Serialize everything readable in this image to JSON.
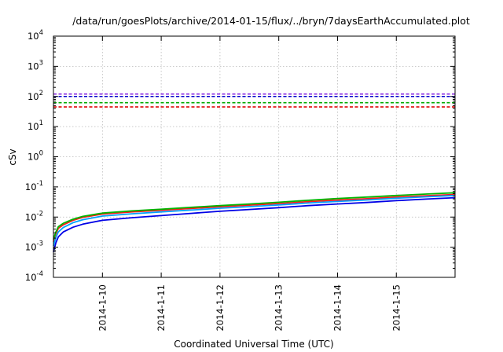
{
  "chart_data": {
    "type": "line",
    "title": "/data/run/goesPlots/archive/2014-01-15/flux/../bryn/7daysEarthAccumulated.plot",
    "xlabel": "Coordinated Universal Time (UTC)",
    "ylabel": "cSv",
    "yscale": "log",
    "ylim": [
      0.0001,
      10000
    ],
    "xlim": [
      "2014-01-09 04:00",
      "2014-01-15 23:59"
    ],
    "grid": true,
    "legend": "none",
    "x_ticks": [
      {
        "label": "2014-1-10",
        "value": "2014-01-10"
      },
      {
        "label": "2014-1-11",
        "value": "2014-01-11"
      },
      {
        "label": "2014-1-12",
        "value": "2014-01-12"
      },
      {
        "label": "2014-1-13",
        "value": "2014-01-13"
      },
      {
        "label": "2014-1-14",
        "value": "2014-01-14"
      },
      {
        "label": "2014-1-15",
        "value": "2014-01-15"
      }
    ],
    "y_ticks": [
      {
        "base": "10",
        "exp": "-4",
        "value": 0.0001
      },
      {
        "base": "10",
        "exp": "-3",
        "value": 0.001
      },
      {
        "base": "10",
        "exp": "-2",
        "value": 0.01
      },
      {
        "base": "10",
        "exp": "-1",
        "value": 0.1
      },
      {
        "base": "10",
        "exp": "0",
        "value": 1
      },
      {
        "base": "10",
        "exp": "1",
        "value": 10
      },
      {
        "base": "10",
        "exp": "2",
        "value": 100
      },
      {
        "base": "10",
        "exp": "3",
        "value": 1000
      },
      {
        "base": "10",
        "exp": "4",
        "value": 10000
      }
    ],
    "thresholds": [
      {
        "color": "#8a2be2",
        "value": 120
      },
      {
        "color": "#0000cc",
        "value": 100
      },
      {
        "color": "#00aa00",
        "value": 62
      },
      {
        "color": "#dd0000",
        "value": 45
      }
    ],
    "series": [
      {
        "color": "#ff1a1a",
        "x": [
          "2014-01-09 04:00",
          "2014-01-09 05:00",
          "2014-01-09 06:00",
          "2014-01-09 08:00",
          "2014-01-09 12:00",
          "2014-01-09 16:00",
          "2014-01-10 00:00",
          "2014-01-10 12:00",
          "2014-01-11 00:00",
          "2014-01-11 12:00",
          "2014-01-12 00:00",
          "2014-01-12 12:00",
          "2014-01-13 00:00",
          "2014-01-13 12:00",
          "2014-01-14 00:00",
          "2014-01-14 12:00",
          "2014-01-15 00:00",
          "2014-01-15 12:00",
          "2014-01-15 23:59"
        ],
        "values": [
          0.0015,
          0.0028,
          0.0042,
          0.0055,
          0.0078,
          0.0098,
          0.0125,
          0.0148,
          0.0168,
          0.0192,
          0.022,
          0.0248,
          0.028,
          0.0325,
          0.0365,
          0.0405,
          0.046,
          0.051,
          0.056
        ]
      },
      {
        "color": "#00b400",
        "x": [
          "2014-01-09 04:00",
          "2014-01-09 05:00",
          "2014-01-09 06:00",
          "2014-01-09 08:00",
          "2014-01-09 12:00",
          "2014-01-09 16:00",
          "2014-01-10 00:00",
          "2014-01-10 12:00",
          "2014-01-11 00:00",
          "2014-01-11 12:00",
          "2014-01-12 00:00",
          "2014-01-12 12:00",
          "2014-01-13 00:00",
          "2014-01-13 12:00",
          "2014-01-14 00:00",
          "2014-01-14 12:00",
          "2014-01-15 00:00",
          "2014-01-15 12:00",
          "2014-01-15 23:59"
        ],
        "values": [
          0.0018,
          0.0032,
          0.0048,
          0.0062,
          0.0085,
          0.0105,
          0.0135,
          0.016,
          0.0182,
          0.021,
          0.024,
          0.0272,
          0.031,
          0.036,
          0.041,
          0.046,
          0.052,
          0.058,
          0.064
        ]
      },
      {
        "color": "#00a0ff",
        "x": [
          "2014-01-09 04:00",
          "2014-01-09 05:00",
          "2014-01-09 06:00",
          "2014-01-09 08:00",
          "2014-01-09 12:00",
          "2014-01-09 16:00",
          "2014-01-10 00:00",
          "2014-01-10 12:00",
          "2014-01-11 00:00",
          "2014-01-11 12:00",
          "2014-01-12 00:00",
          "2014-01-12 12:00",
          "2014-01-13 00:00",
          "2014-01-13 12:00",
          "2014-01-14 00:00",
          "2014-01-14 12:00",
          "2014-01-15 00:00",
          "2014-01-15 12:00",
          "2014-01-15 23:59"
        ],
        "values": [
          0.0011,
          0.0021,
          0.0032,
          0.0045,
          0.0065,
          0.0082,
          0.0108,
          0.0128,
          0.0148,
          0.017,
          0.0196,
          0.0222,
          0.0252,
          0.0292,
          0.033,
          0.0368,
          0.042,
          0.047,
          0.052
        ]
      },
      {
        "color": "#0000e6",
        "x": [
          "2014-01-09 04:00",
          "2014-01-09 05:00",
          "2014-01-09 06:00",
          "2014-01-09 08:00",
          "2014-01-09 12:00",
          "2014-01-09 16:00",
          "2014-01-10 00:00",
          "2014-01-10 12:00",
          "2014-01-11 00:00",
          "2014-01-11 12:00",
          "2014-01-12 00:00",
          "2014-01-12 12:00",
          "2014-01-13 00:00",
          "2014-01-13 12:00",
          "2014-01-14 00:00",
          "2014-01-14 12:00",
          "2014-01-15 00:00",
          "2014-01-15 12:00",
          "2014-01-15 23:59"
        ],
        "values": [
          0.0007,
          0.0014,
          0.0022,
          0.0032,
          0.0046,
          0.0058,
          0.0078,
          0.0095,
          0.0112,
          0.0132,
          0.0155,
          0.0178,
          0.0205,
          0.024,
          0.0272,
          0.0305,
          0.035,
          0.0395,
          0.044
        ]
      }
    ]
  }
}
